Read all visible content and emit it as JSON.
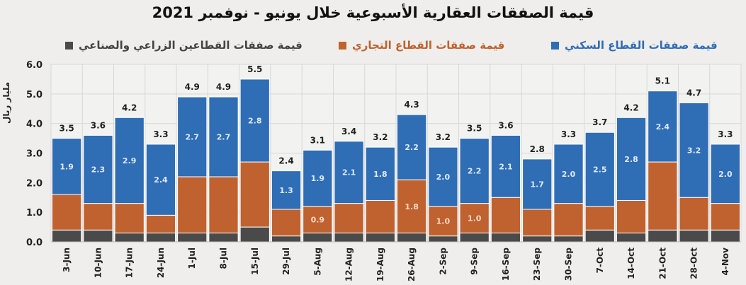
{
  "chart_data": {
    "type": "bar",
    "stacked": true,
    "title": "قيمة الصفقات العقارية الأسبوعية خلال يونيو - نوفمبر 2021",
    "ylabel": "مليار ريال",
    "xlabel": "",
    "ylim": [
      0,
      6
    ],
    "yticks": [
      "0.0",
      "1.0",
      "2.0",
      "3.0",
      "4.0",
      "5.0",
      "6.0"
    ],
    "grid": true,
    "legend_position": "top",
    "categories": [
      "3-Jun",
      "10-Jun",
      "17-Jun",
      "24-Jun",
      "1-Jul",
      "8-Jul",
      "15-Jul",
      "29-Jul",
      "5-Aug",
      "12-Aug",
      "19-Aug",
      "26-Aug",
      "2-Sep",
      "9-Sep",
      "16-Sep",
      "23-Sep",
      "30-Sep",
      "7-Oct",
      "14-Oct",
      "21-Oct",
      "28-Oct",
      "4-Nov"
    ],
    "series": [
      {
        "name": "قيمة صفقات القطاعين الزراعي والصناعي",
        "color": "#4a4a4a",
        "values": [
          0.4,
          0.4,
          0.3,
          0.3,
          0.3,
          0.3,
          0.5,
          0.2,
          0.3,
          0.3,
          0.3,
          0.3,
          0.2,
          0.3,
          0.3,
          0.2,
          0.2,
          0.4,
          0.3,
          0.4,
          0.4,
          0.4
        ],
        "labels": [
          null,
          null,
          null,
          null,
          null,
          null,
          null,
          null,
          null,
          null,
          null,
          null,
          null,
          null,
          null,
          null,
          null,
          null,
          null,
          null,
          null,
          null
        ]
      },
      {
        "name": "قيمة صفقات القطاع التجاري",
        "color": "#c0622f",
        "values": [
          1.2,
          0.9,
          1.0,
          0.6,
          1.9,
          1.9,
          2.2,
          0.9,
          0.9,
          1.0,
          1.1,
          1.8,
          1.0,
          1.0,
          1.2,
          0.9,
          1.1,
          0.8,
          1.1,
          2.3,
          1.1,
          0.9
        ],
        "labels": [
          null,
          null,
          null,
          null,
          null,
          null,
          null,
          null,
          "0.9",
          null,
          null,
          "1.8",
          "1.0",
          "1.0",
          null,
          null,
          null,
          null,
          null,
          null,
          null,
          null
        ]
      },
      {
        "name": "قيمة صفقات القطاع السكني",
        "color": "#2f6db5",
        "values": [
          1.9,
          2.3,
          2.9,
          2.4,
          2.7,
          2.7,
          2.8,
          1.3,
          1.9,
          2.1,
          1.8,
          2.2,
          2.0,
          2.2,
          2.1,
          1.7,
          2.0,
          2.5,
          2.8,
          2.4,
          3.2,
          2.0
        ],
        "labels": [
          "1.9",
          "2.3",
          "2.9",
          "2.4",
          "2.7",
          "2.7",
          "2.8",
          "1.3",
          "1.9",
          "2.1",
          "1.8",
          "2.2",
          "2.0",
          "2.2",
          "2.1",
          "1.7",
          "2.0",
          "2.5",
          "2.8",
          "2.4",
          "3.2",
          "2.0"
        ]
      }
    ],
    "totals": [
      "3.5",
      "3.6",
      "4.2",
      "3.3",
      "4.9",
      "4.9",
      "5.5",
      "2.4",
      "3.1",
      "3.4",
      "3.2",
      "4.3",
      "3.2",
      "3.5",
      "3.6",
      "2.8",
      "3.3",
      "3.7",
      "4.2",
      "5.1",
      "4.7",
      "3.3"
    ]
  }
}
